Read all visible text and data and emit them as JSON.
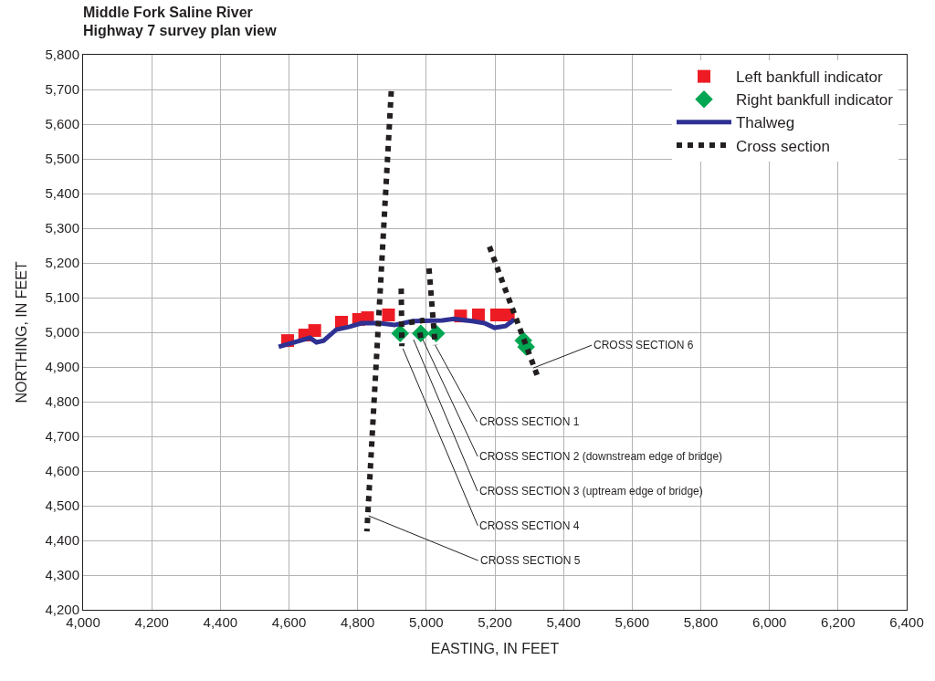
{
  "chart_data": {
    "type": "scatter",
    "title": "Middle Fork Saline River\nHighway 7 survey plan view",
    "xlabel": "EASTING, IN FEET",
    "ylabel": "NORTHING, IN FEET",
    "xlim": [
      4000,
      6400
    ],
    "xticks": [
      {
        "value": 4000,
        "label": "4,000"
      },
      {
        "value": 4200,
        "label": "4,200"
      },
      {
        "value": 4400,
        "label": "4,400"
      },
      {
        "value": 4600,
        "label": "4,600"
      },
      {
        "value": 4800,
        "label": "4,800"
      },
      {
        "value": 5000,
        "label": "5,000"
      },
      {
        "value": 5200,
        "label": "5,200"
      },
      {
        "value": 5400,
        "label": "5,400"
      },
      {
        "value": 5600,
        "label": "5,600"
      },
      {
        "value": 5800,
        "label": "5,800"
      },
      {
        "value": 6000,
        "label": "6,000"
      },
      {
        "value": 6200,
        "label": "6,200"
      },
      {
        "value": 6400,
        "label": "6,400"
      }
    ],
    "ylim": [
      4200,
      5800
    ],
    "yticks": [
      {
        "value": 4200,
        "label": "4,200"
      },
      {
        "value": 4300,
        "label": "4,300"
      },
      {
        "value": 4400,
        "label": "4,400"
      },
      {
        "value": 4500,
        "label": "4,500"
      },
      {
        "value": 4600,
        "label": "4,600"
      },
      {
        "value": 4700,
        "label": "4,700"
      },
      {
        "value": 4800,
        "label": "4,800"
      },
      {
        "value": 4900,
        "label": "4,900"
      },
      {
        "value": 5000,
        "label": "5,000"
      },
      {
        "value": 5100,
        "label": "5,100"
      },
      {
        "value": 5200,
        "label": "5,200"
      },
      {
        "value": 5300,
        "label": "5,300"
      },
      {
        "value": 5400,
        "label": "5,400"
      },
      {
        "value": 5500,
        "label": "5,500"
      },
      {
        "value": 5600,
        "label": "5,600"
      },
      {
        "value": 5700,
        "label": "5,700"
      },
      {
        "value": 5800,
        "label": "5,800"
      }
    ],
    "grid": true,
    "legend": "top right",
    "series": [
      {
        "name": "Left bankfull indicator",
        "marker": "square",
        "color": "#ed1c24",
        "x": [
          4596,
          4646,
          4675,
          4753,
          4803,
          4829,
          4890,
          5073,
          5100,
          5152,
          5205,
          5239
        ],
        "values": [
          4976,
          4992,
          5005,
          5029,
          5037,
          5042,
          5050,
          null,
          5047,
          5050,
          5050,
          5050
        ]
      },
      {
        "name": "Right bankfull indicator",
        "marker": "diamond",
        "color": "#00a651",
        "x": [
          4924,
          4984,
          5029,
          5283,
          5291
        ],
        "values": [
          4997,
          4997,
          4997,
          4976,
          4958
        ]
      },
      {
        "name": "Thalweg",
        "type": "line",
        "marker": "none",
        "line_style": "solid",
        "color": "#2e3192",
        "x": [
          4570,
          4661,
          4680,
          4701,
          4738,
          4777,
          4811,
          4864,
          4908,
          4961,
          5047,
          5081,
          5134,
          5171,
          5199,
          5231,
          5257
        ],
        "values": [
          4958,
          4984,
          4971,
          4976,
          5008,
          5016,
          5026,
          5026,
          5021,
          5032,
          5034,
          5039,
          5032,
          5026,
          5013,
          5018,
          5037
        ]
      },
      {
        "name": "Cross section",
        "type": "line",
        "marker": "none",
        "line_style": "dotted",
        "color": "#231f20",
        "x": [
          4898,
          4827,
          null,
          4927,
          4929,
          null,
          5008,
          5026,
          null,
          5184,
          5328,
          null,
          4950,
          4995,
          null,
          4975,
          5005
        ],
        "values": [
          5695,
          4426,
          null,
          5126,
          4960,
          null,
          5184,
          4963,
          null,
          5247,
          4863,
          null,
          5028,
          5035,
          null,
          4990,
          4995
        ]
      }
    ],
    "annotations": [
      {
        "text": "CROSS SECTION 1",
        "x": 5026,
        "y": 4963
      },
      {
        "text": "CROSS SECTION 2 (downstream edge of bridge)",
        "x": 4990,
        "y": 4979
      },
      {
        "text": "CROSS SECTION 3 (uptream edge of bridge)",
        "x": 4963,
        "y": 4979
      },
      {
        "text": "CROSS SECTION 4",
        "x": 4932,
        "y": 4953
      },
      {
        "text": "CROSS SECTION 5",
        "x": 4832,
        "y": 4471
      },
      {
        "text": "CROSS SECTION 6",
        "x": 5312,
        "y": 4897
      }
    ]
  }
}
